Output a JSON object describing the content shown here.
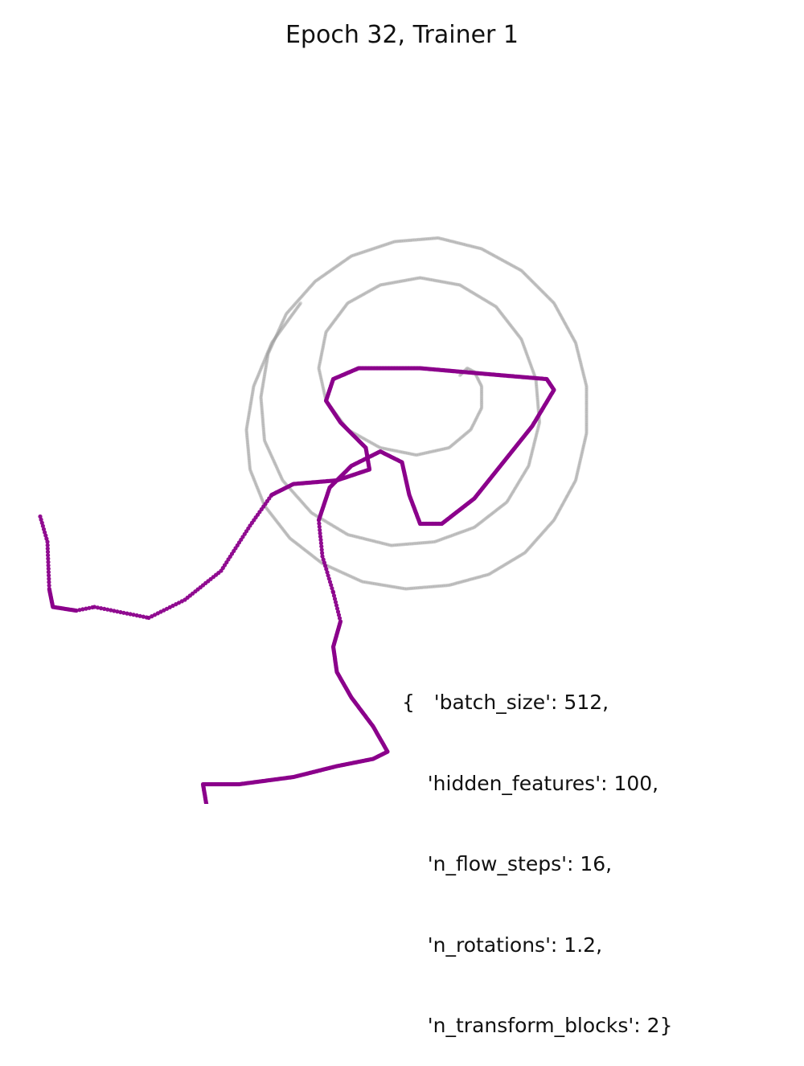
{
  "chart_data": {
    "type": "scatter",
    "title": "Epoch 32, Trainer 1",
    "xlabel": "",
    "ylabel": "",
    "axes_visible": false,
    "grid": false,
    "annotation_lines": [
      "{   'batch_size': 512,",
      "    'hidden_features': 100,",
      "    'n_flow_steps': 16,",
      "    'n_rotations': 1.2,",
      "    'n_transform_blocks': 2}"
    ],
    "params": {
      "batch_size": 512,
      "hidden_features": 100,
      "n_flow_steps": 16,
      "n_rotations": 1.2,
      "n_transform_blocks": 2
    },
    "series": [
      {
        "role": "target spiral",
        "color": "#9a9a9a",
        "points": [
          [
            0.32,
            0.28
          ],
          [
            0.36,
            0.32
          ],
          [
            0.4,
            0.3
          ],
          [
            0.44,
            0.22
          ],
          [
            0.44,
            0.1
          ],
          [
            0.38,
            -0.02
          ],
          [
            0.26,
            -0.12
          ],
          [
            0.08,
            -0.16
          ],
          [
            -0.12,
            -0.12
          ],
          [
            -0.3,
            -0.02
          ],
          [
            -0.42,
            0.14
          ],
          [
            -0.46,
            0.32
          ],
          [
            -0.42,
            0.52
          ],
          [
            -0.3,
            0.68
          ],
          [
            -0.12,
            0.78
          ],
          [
            0.1,
            0.82
          ],
          [
            0.32,
            0.78
          ],
          [
            0.52,
            0.66
          ],
          [
            0.66,
            0.48
          ],
          [
            0.74,
            0.26
          ],
          [
            0.76,
            0.02
          ],
          [
            0.7,
            -0.22
          ],
          [
            0.58,
            -0.42
          ],
          [
            0.4,
            -0.56
          ],
          [
            0.18,
            -0.64
          ],
          [
            -0.06,
            -0.66
          ],
          [
            -0.3,
            -0.6
          ],
          [
            -0.5,
            -0.48
          ],
          [
            -0.66,
            -0.3
          ],
          [
            -0.76,
            -0.08
          ],
          [
            -0.78,
            0.16
          ],
          [
            -0.74,
            0.4
          ],
          [
            -0.64,
            0.62
          ],
          [
            -0.48,
            0.8
          ],
          [
            -0.28,
            0.94
          ],
          [
            -0.04,
            1.02
          ],
          [
            0.2,
            1.04
          ],
          [
            0.44,
            0.98
          ],
          [
            0.66,
            0.86
          ],
          [
            0.84,
            0.68
          ],
          [
            0.96,
            0.46
          ],
          [
            1.02,
            0.22
          ],
          [
            1.02,
            -0.04
          ],
          [
            0.96,
            -0.3
          ],
          [
            0.84,
            -0.52
          ],
          [
            0.68,
            -0.7
          ],
          [
            0.48,
            -0.82
          ],
          [
            0.26,
            -0.88
          ],
          [
            0.02,
            -0.9
          ],
          [
            -0.22,
            -0.86
          ],
          [
            -0.44,
            -0.76
          ],
          [
            -0.62,
            -0.62
          ],
          [
            -0.76,
            -0.44
          ],
          [
            -0.84,
            -0.24
          ],
          [
            -0.86,
            -0.02
          ],
          [
            -0.82,
            0.22
          ],
          [
            -0.72,
            0.46
          ],
          [
            -0.56,
            0.68
          ]
        ]
      },
      {
        "role": "model samples",
        "color": "#8b008b",
        "points": [
          [
            -2.0,
            -0.5
          ],
          [
            -1.96,
            -0.64
          ],
          [
            -1.95,
            -0.9
          ],
          [
            -1.93,
            -1.0
          ],
          [
            -1.8,
            -1.02
          ],
          [
            -1.7,
            -1.0
          ],
          [
            -1.4,
            -1.06
          ],
          [
            -1.2,
            -0.96
          ],
          [
            -1.0,
            -0.8
          ],
          [
            -0.84,
            -0.55
          ],
          [
            -0.72,
            -0.38
          ],
          [
            -0.6,
            -0.32
          ],
          [
            -0.36,
            -0.3
          ],
          [
            -0.18,
            -0.24
          ],
          [
            -0.2,
            -0.12
          ],
          [
            -0.34,
            0.02
          ],
          [
            -0.42,
            0.14
          ],
          [
            -0.38,
            0.26
          ],
          [
            -0.24,
            0.32
          ],
          [
            0.1,
            0.32
          ],
          [
            0.56,
            0.28
          ],
          [
            0.8,
            0.26
          ],
          [
            0.84,
            0.2
          ],
          [
            0.72,
            0.0
          ],
          [
            0.56,
            -0.2
          ],
          [
            0.4,
            -0.4
          ],
          [
            0.22,
            -0.54
          ],
          [
            0.1,
            -0.54
          ],
          [
            0.04,
            -0.38
          ],
          [
            0.0,
            -0.2
          ],
          [
            -0.12,
            -0.14
          ],
          [
            -0.28,
            -0.22
          ],
          [
            -0.4,
            -0.34
          ],
          [
            -0.46,
            -0.52
          ],
          [
            -0.44,
            -0.72
          ],
          [
            -0.38,
            -0.92
          ],
          [
            -0.34,
            -1.08
          ],
          [
            -0.38,
            -1.22
          ],
          [
            -0.36,
            -1.36
          ],
          [
            -0.28,
            -1.5
          ],
          [
            -0.16,
            -1.66
          ],
          [
            -0.08,
            -1.8
          ],
          [
            -0.16,
            -1.84
          ],
          [
            -0.36,
            -1.88
          ],
          [
            -0.6,
            -1.94
          ],
          [
            -0.9,
            -1.98
          ],
          [
            -1.1,
            -1.98
          ],
          [
            -1.08,
            -2.1
          ],
          [
            -1.03,
            -2.28
          ]
        ]
      }
    ]
  }
}
